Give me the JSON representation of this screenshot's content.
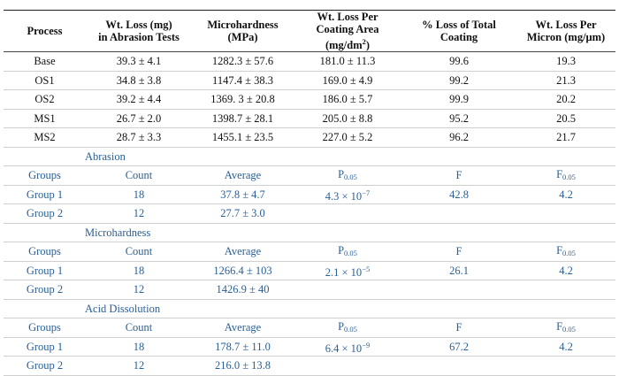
{
  "header": {
    "process": "Process",
    "wt_loss_1": "Wt. Loss (mg)",
    "wt_loss_2": "in Abrasion Tests",
    "micro_1": "Microhardness",
    "micro_2": "(MPa)",
    "per_area_1": "Wt. Loss Per",
    "per_area_2": "Coating Area",
    "per_area_3a": "(mg/dm",
    "per_area_3sup": "2",
    "per_area_3b": ")",
    "pct_1": "% Loss of Total",
    "pct_2": "Coating",
    "per_micron_1": "Wt. Loss Per",
    "per_micron_2": "Micron (mg/μm)"
  },
  "processes": [
    {
      "process": "Base",
      "wt_loss": "39.3 ± 4.1",
      "microhardness": "1282.3 ± 57.6",
      "per_area": "181.0 ± 11.3",
      "pct_loss": "99.6",
      "per_micron": "19.3"
    },
    {
      "process": "OS1",
      "wt_loss": "34.8 ± 3.8",
      "microhardness": "1147.4 ± 38.3",
      "per_area": "169.0 ± 4.9",
      "pct_loss": "99.2",
      "per_micron": "21.3"
    },
    {
      "process": "OS2",
      "wt_loss": "39.2 ± 4.4",
      "microhardness": "1369. 3 ± 20.8",
      "per_area": "186.0 ± 5.7",
      "pct_loss": "99.9",
      "per_micron": "20.2"
    },
    {
      "process": "MS1",
      "wt_loss": "26.7 ± 2.0",
      "microhardness": "1398.7 ± 28.1",
      "per_area": "205.0 ± 8.8",
      "pct_loss": "95.2",
      "per_micron": "20.5"
    },
    {
      "process": "MS2",
      "wt_loss": "28.7 ± 3.3",
      "microhardness": "1455.1 ± 23.5",
      "per_area": "227.0 ± 5.2",
      "pct_loss": "96.2",
      "per_micron": "21.7"
    }
  ],
  "stats_header": {
    "groups": "Groups",
    "count": "Count",
    "average": "Average",
    "p_base": "P",
    "p_sub": "0.05",
    "f": "F",
    "fcrit_base": "F",
    "fcrit_sub": "0.05"
  },
  "sections": [
    {
      "title": "Abrasion",
      "g1": {
        "name": "Group 1",
        "count": "18",
        "average": "37.8 ± 4.7",
        "p_base": "4.3 × 10",
        "p_exp": "−7",
        "f": "42.8",
        "fcrit": "4.2"
      },
      "g2": {
        "name": "Group 2",
        "count": "12",
        "average": "27.7 ± 3.0"
      }
    },
    {
      "title": "Microhardness",
      "g1": {
        "name": "Group 1",
        "count": "18",
        "average": "1266.4 ± 103",
        "p_base": "2.1 × 10",
        "p_exp": "−5",
        "f": "26.1",
        "fcrit": "4.2"
      },
      "g2": {
        "name": "Group 2",
        "count": "12",
        "average": "1426.9 ± 40"
      }
    },
    {
      "title": "Acid Dissolution",
      "g1": {
        "name": "Group 1",
        "count": "18",
        "average": "178.7 ± 11.0",
        "p_base": "6.4 × 10",
        "p_exp": "−9",
        "f": "67.2",
        "fcrit": "4.2"
      },
      "g2": {
        "name": "Group 2",
        "count": "12",
        "average": "216.0 ± 13.8"
      }
    }
  ]
}
